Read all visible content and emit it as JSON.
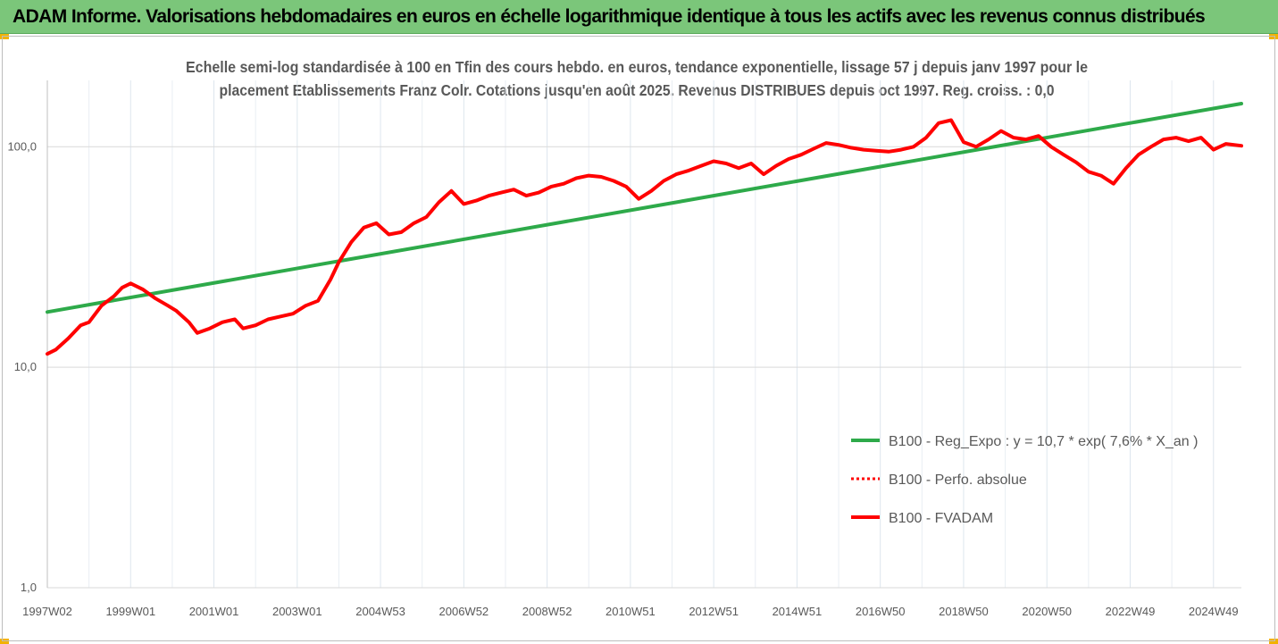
{
  "header": {
    "title": "ADAM Informe. Valorisations hebdomadaires en euros en échelle logarithmique identique à tous les actifs avec les revenus connus distribués"
  },
  "chart_data": {
    "type": "line",
    "title_lines": [
      "Echelle semi-log standardisée à 100 en Tfin des cours hebdo. en euros, tendance exponentielle, lissage 57 j depuis janv 1997 pour le",
      "placement Etablissements Franz Colr. Cotations jusqu'en août 2025. Revenus DISTRIBUES depuis oct 1997. Reg. croiss. : 0,0"
    ],
    "y_scale": "log",
    "ylim": [
      1,
      200
    ],
    "y_ticks": [
      {
        "value": 1,
        "label": "1,0"
      },
      {
        "value": 10,
        "label": "10,0"
      },
      {
        "value": 100,
        "label": "100,0"
      }
    ],
    "xlim": [
      1997.0,
      2025.67
    ],
    "x_ticks": [
      {
        "value": 1997.0,
        "label": "1997W02"
      },
      {
        "value": 1999.0,
        "label": "1999W01"
      },
      {
        "value": 2001.0,
        "label": "2001W01"
      },
      {
        "value": 2003.0,
        "label": "2003W01"
      },
      {
        "value": 2005.0,
        "label": "2004W53"
      },
      {
        "value": 2007.0,
        "label": "2006W52"
      },
      {
        "value": 2009.0,
        "label": "2008W52"
      },
      {
        "value": 2011.0,
        "label": "2010W51"
      },
      {
        "value": 2013.0,
        "label": "2012W51"
      },
      {
        "value": 2015.0,
        "label": "2014W51"
      },
      {
        "value": 2017.0,
        "label": "2016W50"
      },
      {
        "value": 2019.0,
        "label": "2018W50"
      },
      {
        "value": 2021.0,
        "label": "2020W50"
      },
      {
        "value": 2023.0,
        "label": "2022W49"
      },
      {
        "value": 2025.0,
        "label": "2024W49"
      }
    ],
    "grid": true,
    "legend_position": "bottom-right",
    "series": [
      {
        "name": "B100 - Reg_Expo : y = 10,7 * exp( 7,6% *  X_an )",
        "color": "#2eaa4a",
        "style": "solid",
        "x": [
          1997.0,
          2025.67
        ],
        "y": [
          17.8,
          157
        ]
      },
      {
        "name": "B100 - Perfo. absolue",
        "color": "#ff0000",
        "style": "dotted",
        "x": [],
        "y": []
      },
      {
        "name": "B100 - FVADAM",
        "color": "#ff0000",
        "style": "solid",
        "x": [
          1997.0,
          1997.2,
          1997.5,
          1997.8,
          1998.0,
          1998.3,
          1998.6,
          1998.8,
          1999.0,
          1999.3,
          1999.6,
          1999.9,
          2000.1,
          2000.4,
          2000.6,
          2000.9,
          2001.2,
          2001.5,
          2001.7,
          2002.0,
          2002.3,
          2002.6,
          2002.9,
          2003.2,
          2003.5,
          2003.8,
          2004.0,
          2004.3,
          2004.6,
          2004.9,
          2005.2,
          2005.5,
          2005.8,
          2006.1,
          2006.4,
          2006.7,
          2007.0,
          2007.3,
          2007.6,
          2007.9,
          2008.2,
          2008.5,
          2008.8,
          2009.1,
          2009.4,
          2009.7,
          2010.0,
          2010.3,
          2010.6,
          2010.9,
          2011.2,
          2011.5,
          2011.8,
          2012.1,
          2012.4,
          2012.7,
          2013.0,
          2013.3,
          2013.6,
          2013.9,
          2014.2,
          2014.5,
          2014.8,
          2015.1,
          2015.4,
          2015.7,
          2016.0,
          2016.3,
          2016.6,
          2016.9,
          2017.2,
          2017.5,
          2017.8,
          2018.1,
          2018.4,
          2018.7,
          2019.0,
          2019.3,
          2019.6,
          2019.9,
          2020.2,
          2020.5,
          2020.8,
          2021.1,
          2021.4,
          2021.7,
          2022.0,
          2022.3,
          2022.6,
          2022.9,
          2023.2,
          2023.5,
          2023.8,
          2024.1,
          2024.4,
          2024.7,
          2025.0,
          2025.3,
          2025.67
        ],
        "y": [
          11.5,
          12,
          13.5,
          15.5,
          16,
          19,
          21,
          23,
          24,
          22.5,
          20.5,
          19,
          18,
          16,
          14.3,
          15,
          16,
          16.5,
          15,
          15.5,
          16.5,
          17,
          17.5,
          19,
          20,
          25,
          30,
          37,
          43,
          45,
          40,
          41,
          45,
          48,
          56,
          63,
          55,
          57,
          60,
          62,
          64,
          60,
          62,
          66,
          68,
          72,
          74,
          73,
          70,
          66,
          58,
          63,
          70,
          75,
          78,
          82,
          86,
          84,
          80,
          84,
          75,
          82,
          88,
          92,
          98,
          104,
          102,
          99,
          97,
          96,
          95,
          97,
          100,
          110,
          128,
          132,
          105,
          100,
          108,
          118,
          110,
          108,
          112,
          100,
          92,
          85,
          77,
          74,
          68,
          80,
          92,
          100,
          108,
          110,
          106,
          110,
          97,
          103,
          101
        ]
      }
    ]
  }
}
